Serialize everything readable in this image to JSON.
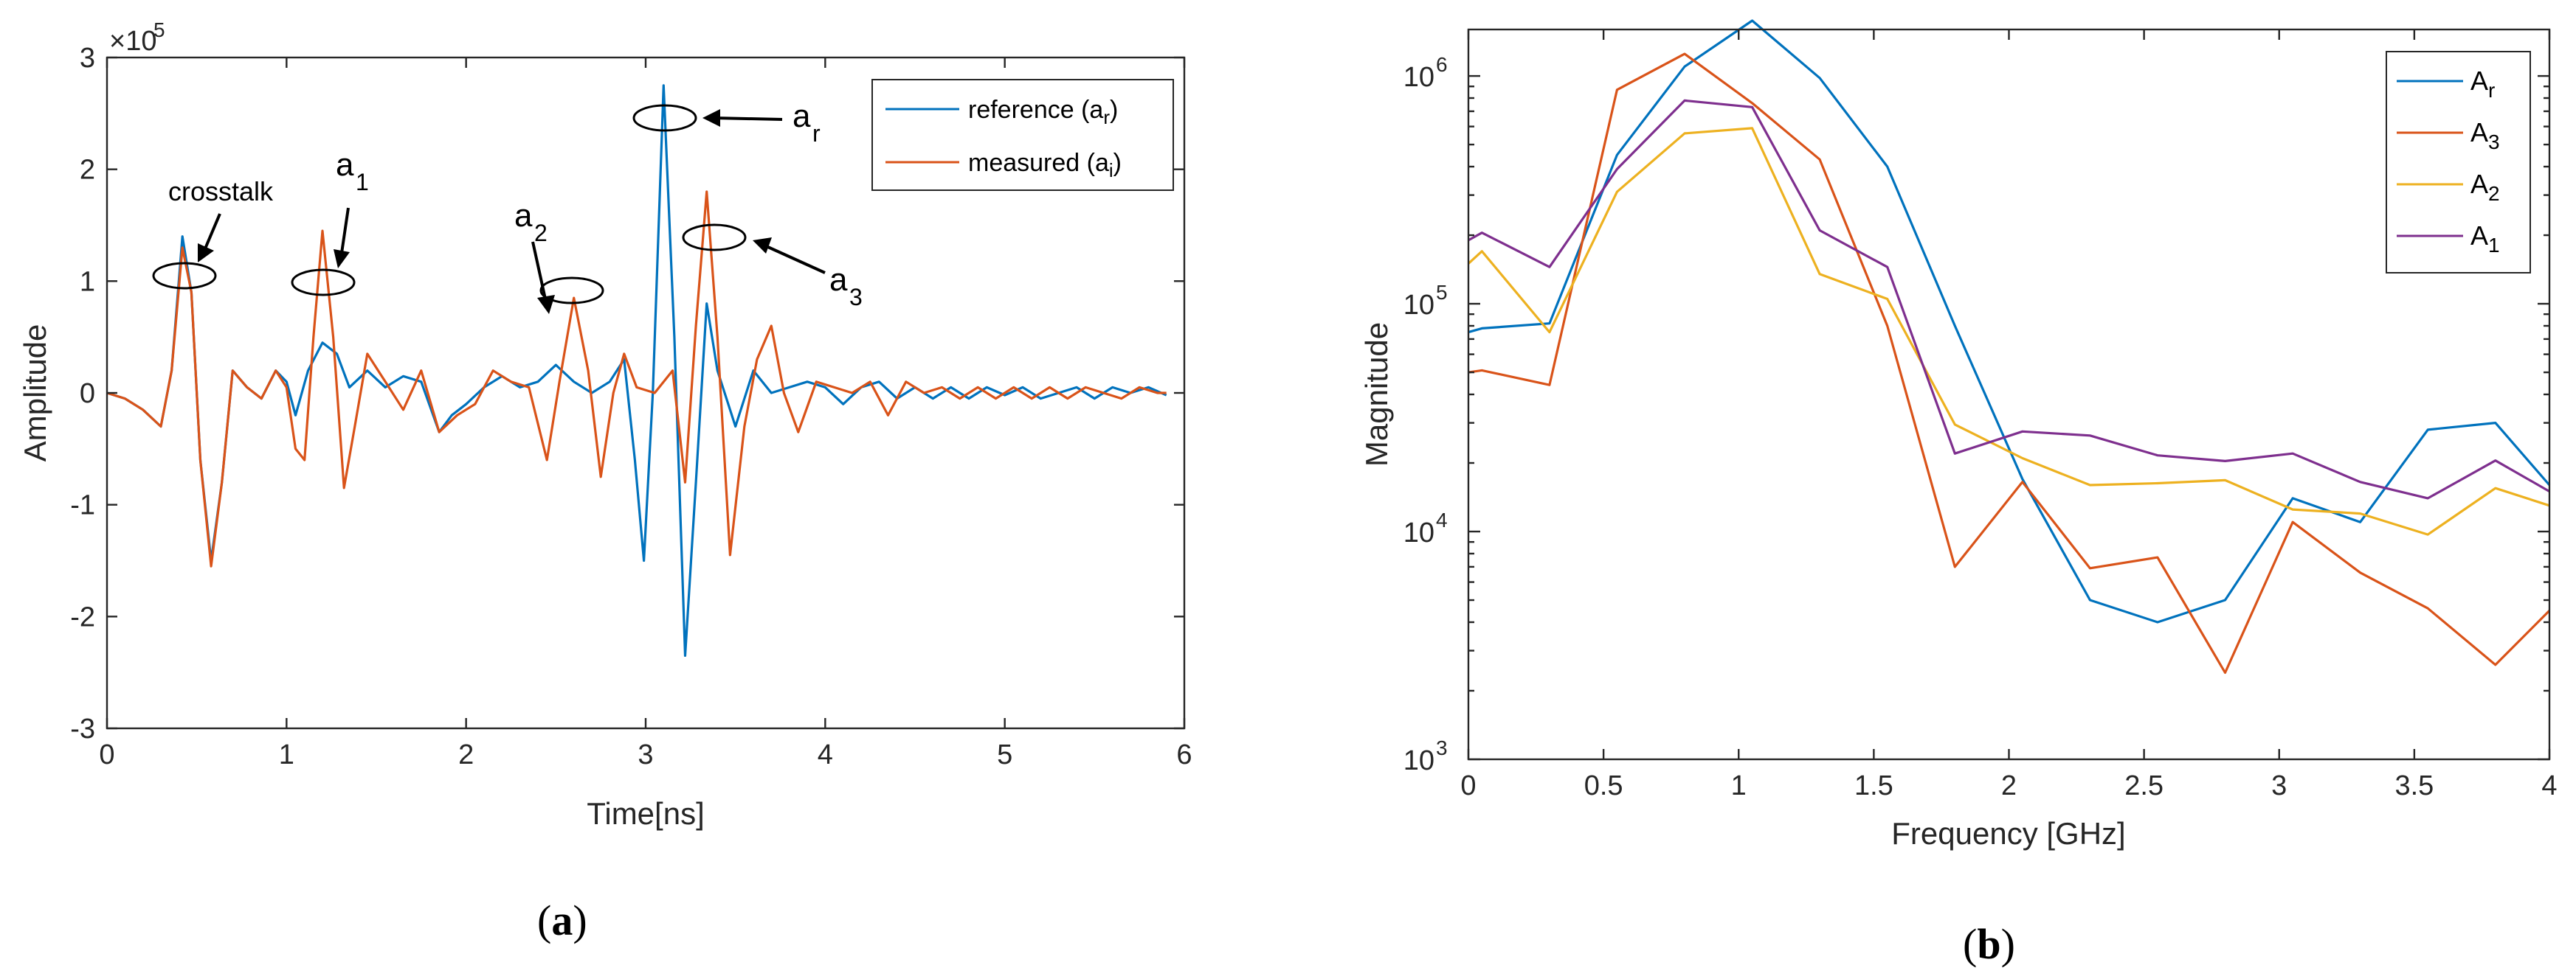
{
  "chart_data": [
    {
      "type": "line",
      "panel": "a",
      "caption_open": "(",
      "caption_letter": "a",
      "caption_close": ")",
      "xlabel": "Time[ns]",
      "ylabel": "Amplitude",
      "exponent_base": "×10",
      "exponent_power": "5",
      "xlim": [
        0,
        6
      ],
      "ylim": [
        -3,
        3
      ],
      "xticks": [
        0,
        1,
        2,
        3,
        4,
        5,
        6
      ],
      "yticks": [
        -3,
        -2,
        -1,
        0,
        1,
        2,
        3
      ],
      "series": [
        {
          "name_main": "reference (a",
          "name_sub": "r",
          "name_end": ")",
          "color": "#0072BD",
          "points": [
            [
              0,
              0
            ],
            [
              0.1,
              -0.05
            ],
            [
              0.2,
              -0.15
            ],
            [
              0.3,
              -0.3
            ],
            [
              0.36,
              0.2
            ],
            [
              0.42,
              1.4
            ],
            [
              0.47,
              0.9
            ],
            [
              0.52,
              -0.6
            ],
            [
              0.58,
              -1.5
            ],
            [
              0.64,
              -0.8
            ],
            [
              0.7,
              0.2
            ],
            [
              0.78,
              0.05
            ],
            [
              0.86,
              -0.05
            ],
            [
              0.94,
              0.2
            ],
            [
              1.0,
              0.1
            ],
            [
              1.05,
              -0.2
            ],
            [
              1.12,
              0.2
            ],
            [
              1.2,
              0.45
            ],
            [
              1.28,
              0.35
            ],
            [
              1.35,
              0.05
            ],
            [
              1.45,
              0.2
            ],
            [
              1.55,
              0.05
            ],
            [
              1.65,
              0.15
            ],
            [
              1.75,
              0.1
            ],
            [
              1.85,
              -0.35
            ],
            [
              1.92,
              -0.2
            ],
            [
              2.0,
              -0.1
            ],
            [
              2.1,
              0.05
            ],
            [
              2.2,
              0.15
            ],
            [
              2.3,
              0.05
            ],
            [
              2.4,
              0.1
            ],
            [
              2.5,
              0.25
            ],
            [
              2.6,
              0.1
            ],
            [
              2.7,
              0.0
            ],
            [
              2.8,
              0.1
            ],
            [
              2.88,
              0.3
            ],
            [
              2.94,
              -0.6
            ],
            [
              2.99,
              -1.5
            ],
            [
              3.04,
              0.0
            ],
            [
              3.1,
              2.75
            ],
            [
              3.16,
              0.5
            ],
            [
              3.22,
              -2.35
            ],
            [
              3.28,
              -0.8
            ],
            [
              3.34,
              0.8
            ],
            [
              3.4,
              0.2
            ],
            [
              3.5,
              -0.3
            ],
            [
              3.6,
              0.2
            ],
            [
              3.7,
              0.0
            ],
            [
              3.8,
              0.05
            ],
            [
              3.9,
              0.1
            ],
            [
              4.0,
              0.05
            ],
            [
              4.1,
              -0.1
            ],
            [
              4.2,
              0.05
            ],
            [
              4.3,
              0.1
            ],
            [
              4.4,
              -0.05
            ],
            [
              4.5,
              0.05
            ],
            [
              4.6,
              -0.05
            ],
            [
              4.7,
              0.05
            ],
            [
              4.8,
              -0.05
            ],
            [
              4.9,
              0.05
            ],
            [
              5.0,
              -0.02
            ],
            [
              5.1,
              0.05
            ],
            [
              5.2,
              -0.05
            ],
            [
              5.3,
              0.0
            ],
            [
              5.4,
              0.05
            ],
            [
              5.5,
              -0.05
            ],
            [
              5.6,
              0.05
            ],
            [
              5.7,
              0.0
            ],
            [
              5.8,
              0.05
            ],
            [
              5.9,
              -0.02
            ]
          ]
        },
        {
          "name_main": "measured (a",
          "name_sub": "i",
          "name_end": ")",
          "color": "#D95319",
          "points": [
            [
              0,
              0
            ],
            [
              0.1,
              -0.05
            ],
            [
              0.2,
              -0.15
            ],
            [
              0.3,
              -0.3
            ],
            [
              0.36,
              0.2
            ],
            [
              0.42,
              1.3
            ],
            [
              0.47,
              0.9
            ],
            [
              0.52,
              -0.6
            ],
            [
              0.58,
              -1.55
            ],
            [
              0.64,
              -0.8
            ],
            [
              0.7,
              0.2
            ],
            [
              0.78,
              0.05
            ],
            [
              0.86,
              -0.05
            ],
            [
              0.94,
              0.2
            ],
            [
              1.0,
              0.05
            ],
            [
              1.05,
              -0.5
            ],
            [
              1.1,
              -0.6
            ],
            [
              1.15,
              0.5
            ],
            [
              1.2,
              1.45
            ],
            [
              1.26,
              0.5
            ],
            [
              1.32,
              -0.85
            ],
            [
              1.38,
              -0.3
            ],
            [
              1.45,
              0.35
            ],
            [
              1.55,
              0.1
            ],
            [
              1.65,
              -0.15
            ],
            [
              1.75,
              0.2
            ],
            [
              1.85,
              -0.35
            ],
            [
              1.95,
              -0.2
            ],
            [
              2.05,
              -0.1
            ],
            [
              2.15,
              0.2
            ],
            [
              2.25,
              0.1
            ],
            [
              2.35,
              0.05
            ],
            [
              2.45,
              -0.6
            ],
            [
              2.52,
              0.1
            ],
            [
              2.6,
              0.85
            ],
            [
              2.68,
              0.2
            ],
            [
              2.75,
              -0.75
            ],
            [
              2.82,
              0.0
            ],
            [
              2.88,
              0.35
            ],
            [
              2.95,
              0.05
            ],
            [
              3.05,
              0.0
            ],
            [
              3.15,
              0.2
            ],
            [
              3.22,
              -0.8
            ],
            [
              3.28,
              0.6
            ],
            [
              3.34,
              1.8
            ],
            [
              3.4,
              0.5
            ],
            [
              3.47,
              -1.45
            ],
            [
              3.55,
              -0.3
            ],
            [
              3.62,
              0.3
            ],
            [
              3.7,
              0.6
            ],
            [
              3.77,
              0.0
            ],
            [
              3.85,
              -0.35
            ],
            [
              3.95,
              0.1
            ],
            [
              4.05,
              0.05
            ],
            [
              4.15,
              0.0
            ],
            [
              4.25,
              0.1
            ],
            [
              4.35,
              -0.2
            ],
            [
              4.45,
              0.1
            ],
            [
              4.55,
              0.0
            ],
            [
              4.65,
              0.05
            ],
            [
              4.75,
              -0.05
            ],
            [
              4.85,
              0.05
            ],
            [
              4.95,
              -0.05
            ],
            [
              5.05,
              0.05
            ],
            [
              5.15,
              -0.05
            ],
            [
              5.25,
              0.05
            ],
            [
              5.35,
              -0.05
            ],
            [
              5.45,
              0.05
            ],
            [
              5.55,
              0.0
            ],
            [
              5.65,
              -0.05
            ],
            [
              5.75,
              0.05
            ],
            [
              5.85,
              0.0
            ],
            [
              5.9,
              0.0
            ]
          ]
        }
      ],
      "annotations": [
        {
          "label": "crosstalk",
          "sub": ""
        },
        {
          "label": "a",
          "sub": "1"
        },
        {
          "label": "a",
          "sub": "2"
        },
        {
          "label": "a",
          "sub": "r"
        },
        {
          "label": "a",
          "sub": "3"
        }
      ],
      "legend_position": "top-right"
    },
    {
      "type": "line",
      "panel": "b",
      "caption_open": "(",
      "caption_letter": "b",
      "caption_close": ")",
      "xlabel": "Frequency [GHz]",
      "ylabel": "Magnitude",
      "yscale": "log",
      "xlim": [
        0,
        4
      ],
      "ylim": [
        1000,
        1600000
      ],
      "xticks": [
        0,
        0.5,
        1,
        1.5,
        2,
        2.5,
        3,
        3.5,
        4
      ],
      "xtick_labels": [
        "0",
        "0.5",
        "1",
        "1.5",
        "2",
        "2.5",
        "3",
        "3.5",
        "4"
      ],
      "yticks": [
        {
          "value": 1000,
          "base": "10",
          "exp": "3"
        },
        {
          "value": 10000,
          "base": "10",
          "exp": "4"
        },
        {
          "value": 100000,
          "base": "10",
          "exp": "5"
        },
        {
          "value": 1000000,
          "base": "10",
          "exp": "6"
        }
      ],
      "frequency": [
        0,
        0.05,
        0.3,
        0.55,
        0.8,
        1.05,
        1.3,
        1.55,
        1.8,
        2.05,
        2.3,
        2.55,
        2.8,
        3.05,
        3.3,
        3.55,
        3.8,
        4.0
      ],
      "series": [
        {
          "name_main": "A",
          "name_sub": "r",
          "color": "#0072BD",
          "values": [
            75000,
            78000,
            82000,
            450000,
            1100000,
            1750000,
            980000,
            400000,
            80000,
            17000,
            5000,
            4000,
            5000,
            14000,
            11000,
            28000,
            30000,
            16000
          ]
        },
        {
          "name_main": "A",
          "name_sub": "3",
          "color": "#D95319",
          "values": [
            50000,
            51000,
            44000,
            870000,
            1250000,
            760000,
            430000,
            80000,
            7000,
            16500,
            6900,
            7700,
            2400,
            11000,
            6600,
            4600,
            2600,
            4500
          ]
        },
        {
          "name_main": "A",
          "name_sub": "2",
          "color": "#EDB120",
          "values": [
            150000,
            170000,
            75000,
            310000,
            560000,
            590000,
            135000,
            105000,
            29500,
            21000,
            16000,
            16300,
            16800,
            12500,
            12000,
            9700,
            15500,
            13000
          ]
        },
        {
          "name_main": "A",
          "name_sub": "1",
          "color": "#7E2F8E",
          "values": [
            190000,
            205000,
            145000,
            390000,
            780000,
            730000,
            210000,
            145000,
            22000,
            27500,
            26400,
            21600,
            20400,
            22000,
            16500,
            14000,
            20500,
            15000
          ]
        }
      ],
      "legend_position": "top-right"
    }
  ]
}
